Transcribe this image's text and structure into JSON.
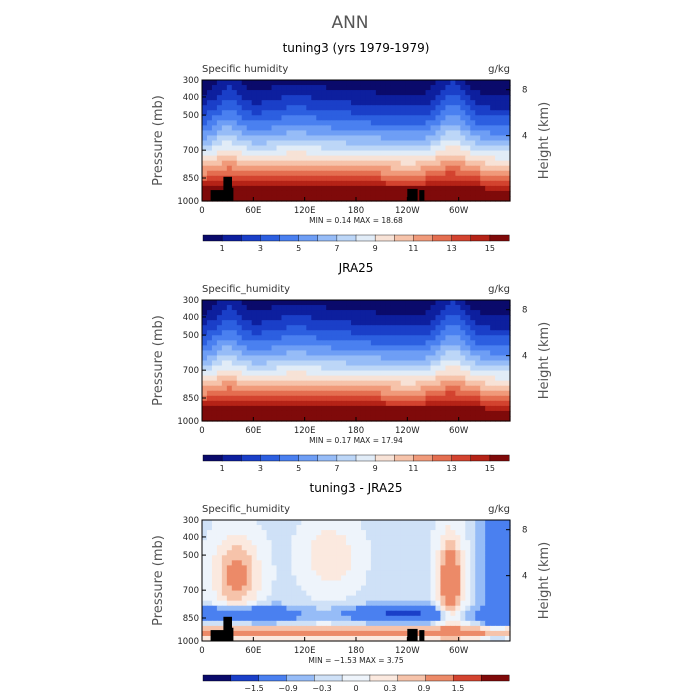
{
  "figure": {
    "suptitle": "ANN"
  },
  "chart_data": [
    {
      "type": "heatmap",
      "title": "tuning3 (yrs 1979-1979)",
      "left_label": "Specific humidity",
      "right_label": "g/kg",
      "ylabel": "Pressure (mb)",
      "ylabel_right": "Height (km)",
      "xticks": [
        "0",
        "60E",
        "120E",
        "180",
        "120W",
        "60W"
      ],
      "yticks": [
        "300",
        "400",
        "500",
        "700",
        "850",
        "1000"
      ],
      "yticks_right": [
        "8",
        "4"
      ],
      "stats": "MIN =    0.14   MAX =   18.68",
      "colorbar_labels": [
        "1",
        "3",
        "5",
        "7",
        "9",
        "11",
        "13",
        "15"
      ],
      "mode": "abs",
      "min": 0.14,
      "max": 18.68
    },
    {
      "type": "heatmap",
      "title": "JRA25",
      "left_label": "Specific_humidity",
      "right_label": "g/kg",
      "ylabel": "Pressure (mb)",
      "ylabel_right": "Height (km)",
      "xticks": [
        "0",
        "60E",
        "120E",
        "180",
        "120W",
        "60W"
      ],
      "yticks": [
        "300",
        "400",
        "500",
        "700",
        "850",
        "1000"
      ],
      "yticks_right": [
        "8",
        "4"
      ],
      "stats": "MIN =    0.17   MAX =   17.94",
      "colorbar_labels": [
        "1",
        "3",
        "5",
        "7",
        "9",
        "11",
        "13",
        "15"
      ],
      "mode": "abs",
      "min": 0.17,
      "max": 17.94
    },
    {
      "type": "heatmap",
      "title": "tuning3 - JRA25",
      "left_label": "Specific_humidity",
      "right_label": "g/kg",
      "ylabel": "Pressure (mb)",
      "ylabel_right": "Height (km)",
      "xticks": [
        "0",
        "60E",
        "120E",
        "180",
        "120W",
        "60W"
      ],
      "yticks": [
        "300",
        "400",
        "500",
        "700",
        "850",
        "1000"
      ],
      "yticks_right": [
        "8",
        "4"
      ],
      "stats": "MIN =   −1.53   MAX =    3.75",
      "colorbar_labels": [
        "−1.5",
        "−0.9",
        "−0.3",
        "0",
        "0.3",
        "0.9",
        "1.5"
      ],
      "mode": "diff",
      "min": -1.53,
      "max": 3.75
    }
  ],
  "colormap": [
    "#0a0a6b",
    "#0d1f9e",
    "#1a3fc8",
    "#2c5fe0",
    "#4a80f0",
    "#6e9ef5",
    "#96bcf7",
    "#bcd6f7",
    "#e1ecf7",
    "#f7e2d6",
    "#f6c3aa",
    "#f09a7a",
    "#e46e50",
    "#d3432f",
    "#b52317",
    "#7f0a0a"
  ],
  "colormap_diff": [
    "#0a0a6b",
    "#1a3fc8",
    "#4a80f0",
    "#96bcf7",
    "#cfe1f7",
    "#eef4fb",
    "#fbe9df",
    "#f6c3aa",
    "#ec8a68",
    "#d3432f",
    "#7f0a0a"
  ]
}
